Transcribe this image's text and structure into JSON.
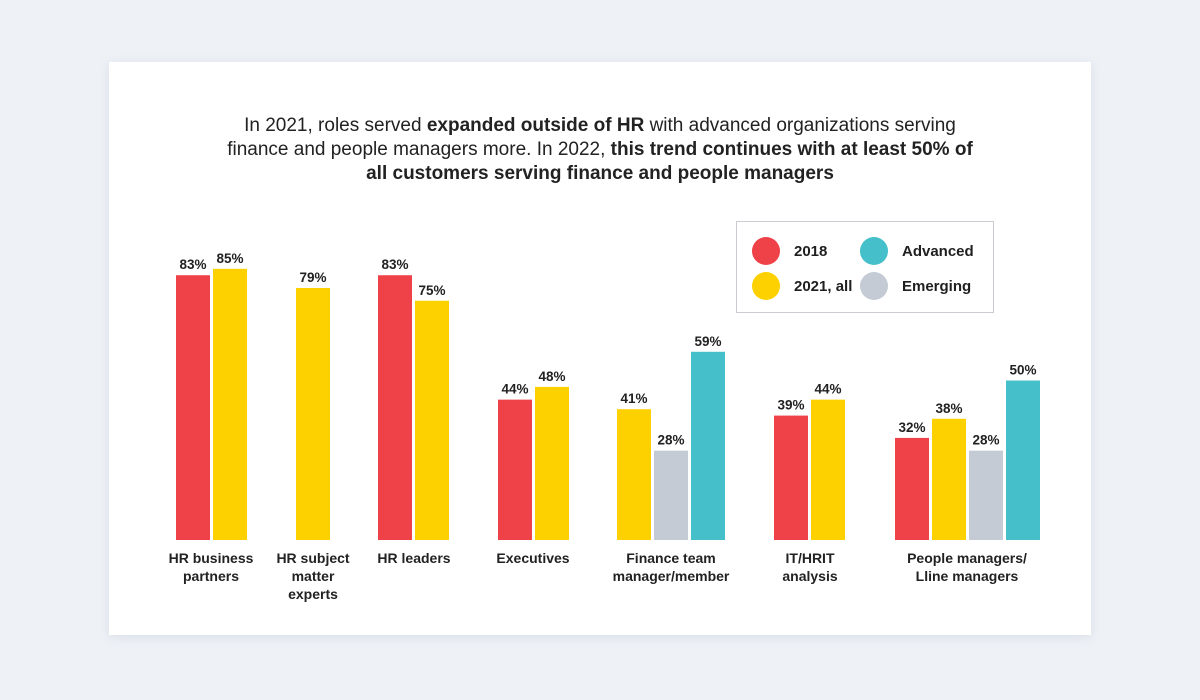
{
  "title": {
    "line1_pre": "In 2021, roles served ",
    "line1_bold": "expanded outside of HR",
    "line1_post": " with advanced organizations serving",
    "line2_pre": "finance and people managers more. In 2022, ",
    "line2_bold": "this trend continues with at least 50% of",
    "line3_bold": "all customers serving finance and people managers"
  },
  "colors": {
    "2018": "#ee4148",
    "2021, all": "#fdd100",
    "Advanced": "#45c0cb",
    "Emerging": "#c4cbd4"
  },
  "chart_data": {
    "type": "bar",
    "title": "In 2021, roles served expanded outside of HR with advanced organizations serving finance and people managers more. In 2022, this trend continues with at least 50% of all customers serving finance and people managers",
    "xlabel": "",
    "ylabel": "",
    "ylim": [
      0,
      100
    ],
    "grid": false,
    "legend_position": "top-right",
    "legend": [
      "2018",
      "2021, all",
      "Advanced",
      "Emerging"
    ],
    "categories": [
      "HR business partners",
      "HR subject matter experts",
      "HR leaders",
      "Executives",
      "Finance team manager/member",
      "IT/HRIT analysis",
      "People managers/ Lline managers"
    ],
    "category_label_lines": [
      [
        "HR business",
        "partners"
      ],
      [
        "HR subject",
        "matter",
        "experts"
      ],
      [
        "HR leaders"
      ],
      [
        "Executives"
      ],
      [
        "Finance team",
        "manager/member"
      ],
      [
        "IT/HRIT",
        "analysis"
      ],
      [
        "People managers/",
        "Lline managers"
      ]
    ],
    "groups": [
      {
        "category": "HR business partners",
        "bars": [
          {
            "series": "2018",
            "value": 83
          },
          {
            "series": "2021, all",
            "value": 85
          }
        ]
      },
      {
        "category": "HR subject matter experts",
        "bars": [
          {
            "series": "2021, all",
            "value": 79
          }
        ]
      },
      {
        "category": "HR leaders",
        "bars": [
          {
            "series": "2018",
            "value": 83
          },
          {
            "series": "2021, all",
            "value": 75
          }
        ]
      },
      {
        "category": "Executives",
        "bars": [
          {
            "series": "2018",
            "value": 44
          },
          {
            "series": "2021, all",
            "value": 48
          }
        ]
      },
      {
        "category": "Finance team manager/member",
        "bars": [
          {
            "series": "2021, all",
            "value": 41
          },
          {
            "series": "Emerging",
            "value": 28
          },
          {
            "series": "Advanced",
            "value": 59
          }
        ]
      },
      {
        "category": "IT/HRIT analysis",
        "bars": [
          {
            "series": "2018",
            "value": 39
          },
          {
            "series": "2021, all",
            "value": 44
          }
        ]
      },
      {
        "category": "People managers/ Lline managers",
        "bars": [
          {
            "series": "2018",
            "value": 32
          },
          {
            "series": "2021, all",
            "value": 38
          },
          {
            "series": "Emerging",
            "value": 28
          },
          {
            "series": "Advanced",
            "value": 50
          }
        ]
      }
    ],
    "value_suffix": "%"
  }
}
